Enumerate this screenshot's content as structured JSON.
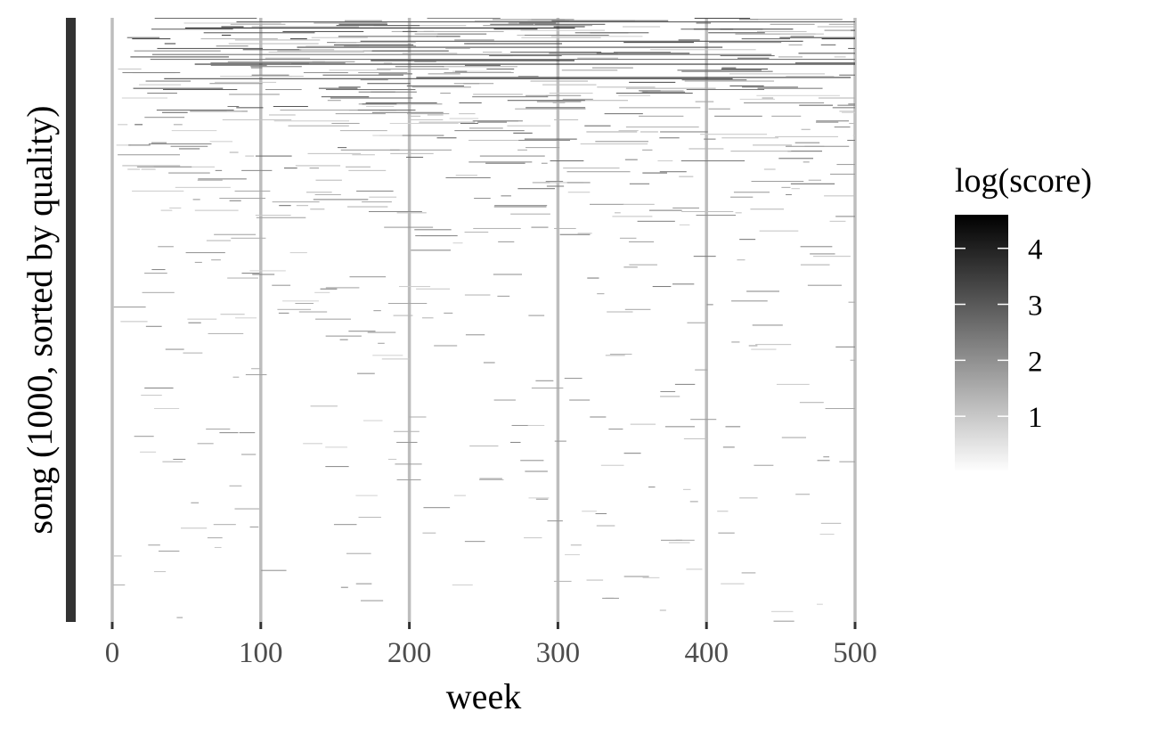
{
  "chart_data": {
    "type": "heatmap",
    "xlabel": "week",
    "ylabel": "song (1000, sorted by quality)",
    "xlim": [
      0,
      500
    ],
    "x_ticks": [
      "0",
      "100",
      "200",
      "300",
      "400",
      "500"
    ],
    "y_categories": 1000,
    "y_order": "sorted by quality, highest at top",
    "grid": "vertical gridlines at x ticks",
    "color_scale": {
      "low_color": "#ffffff",
      "high_color": "#000000",
      "range": [
        0,
        4.6
      ],
      "ticks": [
        "1",
        "2",
        "3",
        "4"
      ]
    },
    "legend": {
      "title": "log(score)",
      "placement": "right"
    },
    "density_profile": [
      {
        "song_fraction": 0.0,
        "fill_fraction": 0.55
      },
      {
        "song_fraction": 0.18,
        "fill_fraction": 0.3
      },
      {
        "song_fraction": 0.4,
        "fill_fraction": 0.12
      },
      {
        "song_fraction": 0.7,
        "fill_fraction": 0.05
      },
      {
        "song_fraction": 1.0,
        "fill_fraction": 0.015
      }
    ]
  }
}
